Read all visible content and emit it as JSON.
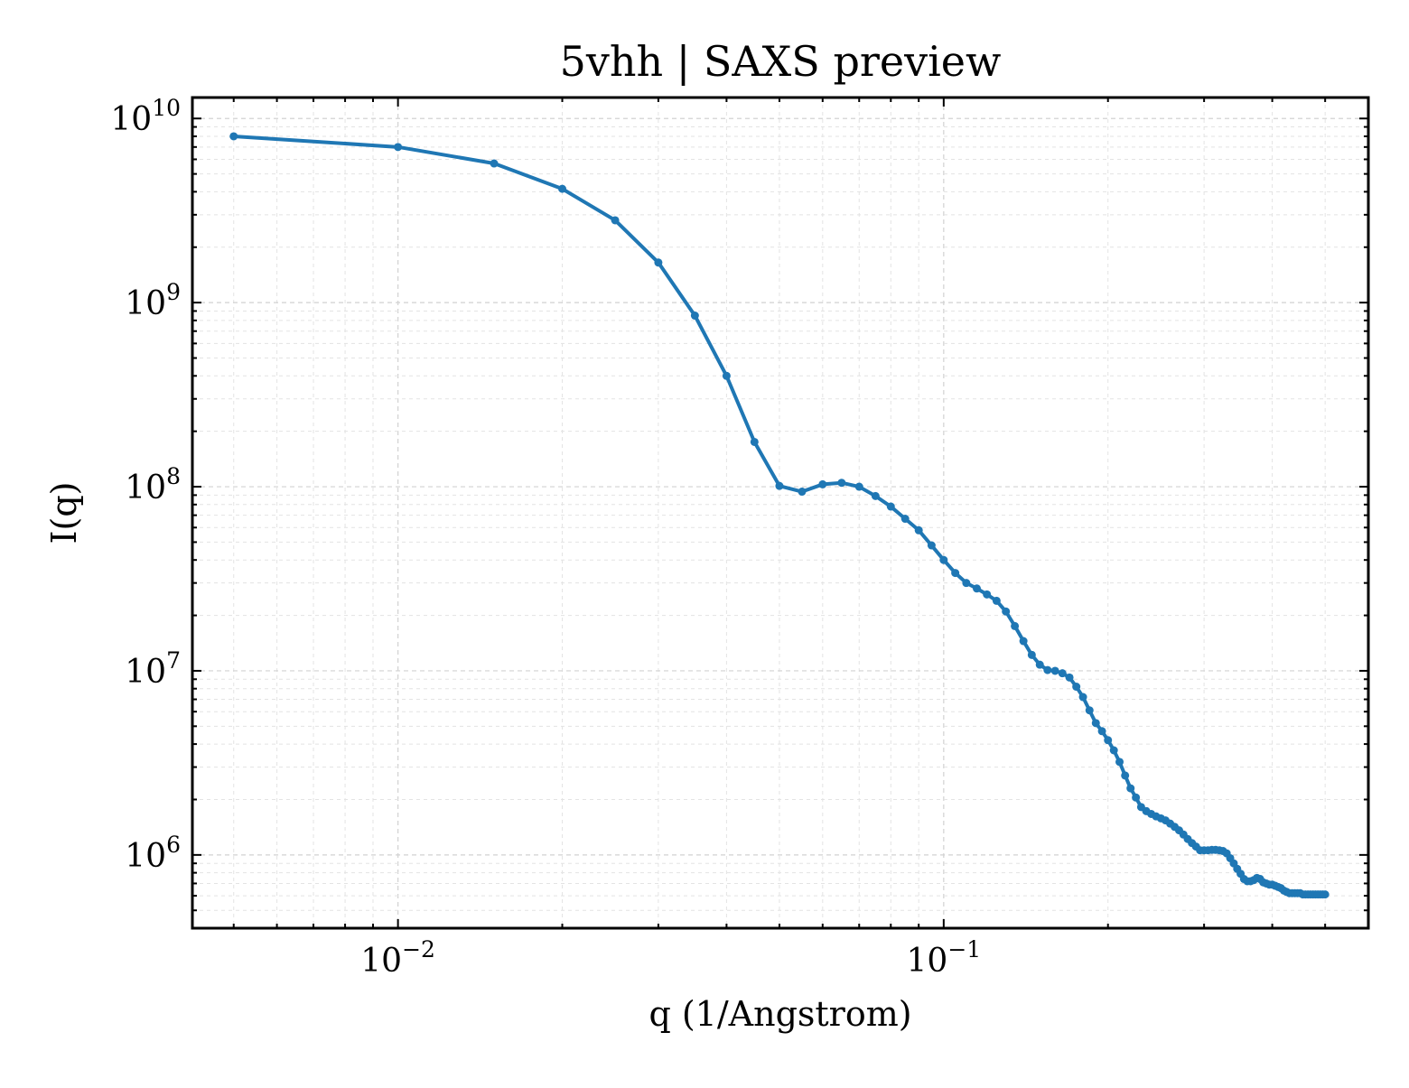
{
  "chart_data": {
    "type": "line",
    "title": "5vhh | SAXS preview",
    "xlabel": "q (1/Angstrom)",
    "ylabel": "I(q)",
    "xscale": "log",
    "yscale": "log",
    "xlim": [
      0.0042,
      0.6
    ],
    "ylim": [
      400000,
      13000000000
    ],
    "grid": "on (major and minor, dashed)",
    "legend": "none",
    "line_color": "#1f77b4",
    "xticks": [
      {
        "base": "10",
        "exp": "−2",
        "value": 0.01
      },
      {
        "base": "10",
        "exp": "−1",
        "value": 0.1
      }
    ],
    "yticks": [
      {
        "base": "10",
        "exp": "6",
        "value": 1000000
      },
      {
        "base": "10",
        "exp": "7",
        "value": 10000000
      },
      {
        "base": "10",
        "exp": "8",
        "value": 100000000
      },
      {
        "base": "10",
        "exp": "9",
        "value": 1000000000
      },
      {
        "base": "10",
        "exp": "10",
        "value": 10000000000
      }
    ],
    "series": [
      {
        "x": [
          0.005,
          0.01,
          0.015,
          0.02,
          0.025,
          0.03,
          0.035,
          0.04,
          0.045,
          0.05,
          0.055,
          0.06,
          0.065,
          0.07,
          0.075,
          0.08,
          0.085,
          0.09,
          0.095,
          0.1,
          0.105,
          0.11,
          0.115,
          0.12,
          0.125,
          0.13,
          0.135,
          0.14,
          0.145,
          0.15,
          0.155,
          0.16,
          0.165,
          0.17,
          0.175,
          0.18,
          0.185,
          0.19,
          0.195,
          0.2,
          0.205,
          0.21,
          0.215,
          0.22,
          0.225,
          0.23,
          0.235,
          0.24,
          0.245,
          0.25,
          0.255,
          0.26,
          0.265,
          0.27,
          0.275,
          0.28,
          0.285,
          0.29,
          0.295,
          0.3,
          0.305,
          0.31,
          0.315,
          0.32,
          0.325,
          0.33,
          0.335,
          0.34,
          0.345,
          0.35,
          0.355,
          0.36,
          0.365,
          0.37,
          0.375,
          0.38,
          0.385,
          0.39,
          0.395,
          0.4,
          0.405,
          0.41,
          0.415,
          0.42,
          0.425,
          0.43,
          0.435,
          0.44,
          0.445,
          0.45,
          0.455,
          0.46,
          0.465,
          0.47,
          0.475,
          0.48,
          0.485,
          0.49,
          0.495,
          0.5
        ],
        "y": [
          8000000000,
          7000000000,
          5700000000,
          4150000000,
          2800000000,
          1650000000,
          850000000,
          400000000,
          175000000,
          101000000,
          94000000,
          103000000,
          105000000,
          100000000,
          89000000,
          78000000,
          67000000,
          58000000,
          48000000,
          40000000,
          34000000,
          30000000,
          28000000,
          26000000,
          24000000,
          21000000,
          17500000,
          14500000,
          12200000,
          10800000,
          10100000,
          10000000,
          9700000,
          9200000,
          8200000,
          7200000,
          6100000,
          5200000,
          4700000,
          4200000,
          3700000,
          3200000,
          2700000,
          2300000,
          2050000,
          1820000,
          1730000,
          1670000,
          1620000,
          1580000,
          1540000,
          1480000,
          1420000,
          1360000,
          1290000,
          1220000,
          1160000,
          1110000,
          1060000,
          1060000,
          1060000,
          1065000,
          1065000,
          1060000,
          1050000,
          1020000,
          960000,
          900000,
          840000,
          790000,
          740000,
          720000,
          720000,
          730000,
          750000,
          740000,
          710000,
          700000,
          690000,
          690000,
          680000,
          670000,
          660000,
          640000,
          630000,
          620000,
          620000,
          620000,
          620000,
          620000,
          610000,
          610000,
          610000,
          610000,
          610000,
          610000,
          610000,
          610000,
          610000,
          610000
        ]
      }
    ]
  }
}
